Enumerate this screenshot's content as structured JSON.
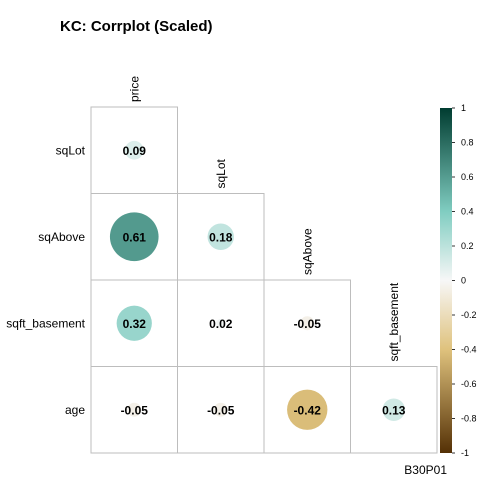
{
  "chart_data": {
    "type": "heatmap",
    "subtype": "corrplot-lower-circle",
    "title": "KC: Corrplot (Scaled)",
    "caption": "B30P01",
    "row_labels": [
      "sqLot",
      "sqAbove",
      "sqft_basement",
      "age"
    ],
    "col_labels": [
      "price",
      "sqLot",
      "sqAbove",
      "sqft_basement"
    ],
    "cells": [
      {
        "row": 0,
        "col": 0,
        "value": 0.09,
        "label": "0.09"
      },
      {
        "row": 1,
        "col": 0,
        "value": 0.61,
        "label": "0.61"
      },
      {
        "row": 1,
        "col": 1,
        "value": 0.18,
        "label": "0.18"
      },
      {
        "row": 2,
        "col": 0,
        "value": 0.32,
        "label": "0.32"
      },
      {
        "row": 2,
        "col": 1,
        "value": 0.02,
        "label": "0.02"
      },
      {
        "row": 2,
        "col": 2,
        "value": -0.05,
        "label": "-0.05"
      },
      {
        "row": 3,
        "col": 0,
        "value": -0.05,
        "label": "-0.05"
      },
      {
        "row": 3,
        "col": 1,
        "value": -0.05,
        "label": "-0.05"
      },
      {
        "row": 3,
        "col": 2,
        "value": -0.42,
        "label": "-0.42"
      },
      {
        "row": 3,
        "col": 3,
        "value": 0.13,
        "label": "0.13"
      }
    ],
    "colorbar": {
      "range": [
        -1,
        1
      ],
      "ticks": [
        "1",
        "0.8",
        "0.6",
        "0.4",
        "0.2",
        "0",
        "-0.2",
        "-0.4",
        "-0.6",
        "-0.8",
        "-1"
      ],
      "tick_values": [
        1,
        0.8,
        0.6,
        0.4,
        0.2,
        0,
        -0.2,
        -0.4,
        -0.6,
        -0.8,
        -1
      ],
      "colors": {
        "neg_end": "#543005",
        "neg_mid": "#dfc27d",
        "zero": "#f7f7f7",
        "pos_mid": "#80cdc1",
        "pos_end": "#003c30"
      }
    }
  }
}
